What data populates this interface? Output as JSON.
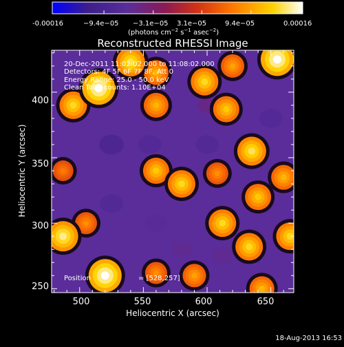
{
  "colorbar": {
    "tick_labels": [
      "-0.00016",
      "−9.4e−05",
      "−3.1e−05",
      "3.1e−05",
      "9.4e−05",
      "0.00016"
    ],
    "unit_label": "(photons cm",
    "unit_exp1": "−2",
    "unit_mid": " s",
    "unit_exp2": "−1",
    "unit_mid2": " asec",
    "unit_exp3": "−2",
    "unit_close": ")",
    "colors": [
      "#0000ff",
      "#3c1e8c",
      "#5a2d9a",
      "#8b1a55",
      "#d23214",
      "#ff7800",
      "#ffd200",
      "#ffffff"
    ]
  },
  "plot": {
    "title": "Reconstructed RHESSI Image",
    "xlabel": "Heliocentric X (arcsec)",
    "ylabel": "Heliocentric Y (arcsec)",
    "annotations": [
      "20-Dec-2011 11:02:02.000 to 11:08:02.000",
      "Detectors: 4F 5F 6F 7F 8F, Att 0",
      "Energy Range: 25.0 - 50.0 keV",
      "Clean    Total counts: 1.10E+04"
    ],
    "position_label": "Position",
    "position_value": "= [528,257]"
  },
  "footer": {
    "timestamp": "18-Aug-2013 16:53"
  },
  "chart_data": {
    "type": "heatmap",
    "title": "Reconstructed RHESSI Image",
    "xlabel": "Heliocentric X (arcsec)",
    "ylabel": "Heliocentric Y (arcsec)",
    "xlim": [
      478,
      668
    ],
    "ylim": [
      247,
      432
    ],
    "x_ticks": [
      500,
      550,
      600,
      650
    ],
    "y_ticks": [
      250,
      300,
      350,
      400
    ],
    "colorbar_range": [
      -0.00016,
      0.00016
    ],
    "colorbar_ticks": [
      -0.00016,
      -9.4e-05,
      -3.1e-05,
      3.1e-05,
      9.4e-05,
      0.00016
    ],
    "sources": [
      {
        "x": 515,
        "y": 403,
        "value": 0.00016
      },
      {
        "x": 540,
        "y": 423,
        "value": 0.00013
      },
      {
        "x": 520,
        "y": 260,
        "value": 0.00016
      },
      {
        "x": 487,
        "y": 290,
        "value": 0.00014
      },
      {
        "x": 655,
        "y": 425,
        "value": 0.00016
      },
      {
        "x": 495,
        "y": 390,
        "value": 0.00012
      },
      {
        "x": 560,
        "y": 390,
        "value": 0.0001
      },
      {
        "x": 560,
        "y": 415,
        "value": 0.0001
      },
      {
        "x": 598,
        "y": 408,
        "value": 0.00012
      },
      {
        "x": 615,
        "y": 387,
        "value": 0.00011
      },
      {
        "x": 620,
        "y": 420,
        "value": 9e-05
      },
      {
        "x": 560,
        "y": 340,
        "value": 0.00011
      },
      {
        "x": 580,
        "y": 330,
        "value": 0.00012
      },
      {
        "x": 635,
        "y": 355,
        "value": 0.00013
      },
      {
        "x": 608,
        "y": 338,
        "value": 8e-05
      },
      {
        "x": 612,
        "y": 300,
        "value": 0.00012
      },
      {
        "x": 640,
        "y": 320,
        "value": 0.00011
      },
      {
        "x": 660,
        "y": 335,
        "value": 0.0001
      },
      {
        "x": 665,
        "y": 290,
        "value": 0.00012
      },
      {
        "x": 633,
        "y": 282,
        "value": 0.00012
      },
      {
        "x": 643,
        "y": 250,
        "value": 0.0001
      },
      {
        "x": 590,
        "y": 260,
        "value": 9e-05
      },
      {
        "x": 560,
        "y": 262,
        "value": 8e-05
      },
      {
        "x": 487,
        "y": 340,
        "value": 7e-05
      },
      {
        "x": 505,
        "y": 300,
        "value": 8e-05
      },
      {
        "x": 525,
        "y": 360,
        "value": -0.0001
      },
      {
        "x": 555,
        "y": 360,
        "value": -9e-05
      },
      {
        "x": 525,
        "y": 315,
        "value": -9e-05
      },
      {
        "x": 560,
        "y": 300,
        "value": -8e-05
      },
      {
        "x": 600,
        "y": 360,
        "value": -9e-05
      },
      {
        "x": 612,
        "y": 275,
        "value": -7e-05
      },
      {
        "x": 650,
        "y": 380,
        "value": -9e-05
      },
      {
        "x": 600,
        "y": 390,
        "value": -6e-05
      },
      {
        "x": 580,
        "y": 280,
        "value": -7e-05
      }
    ]
  }
}
